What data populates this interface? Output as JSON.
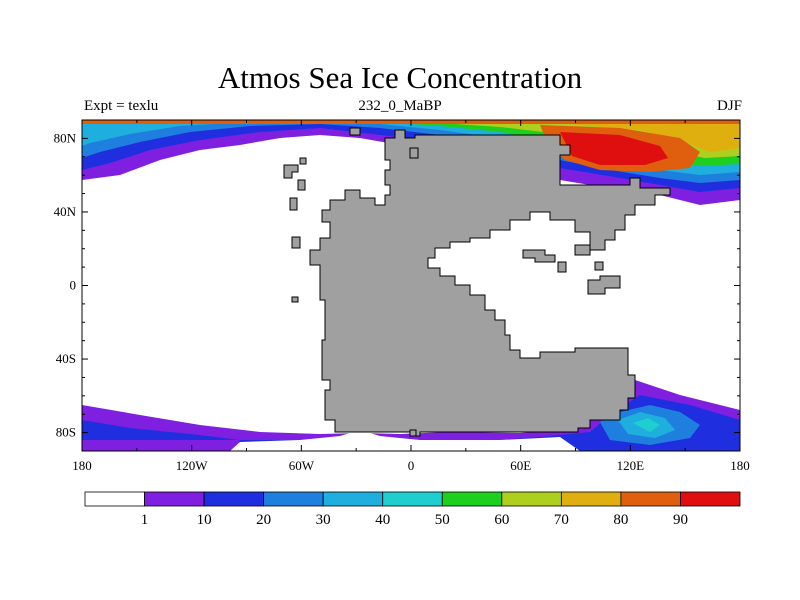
{
  "title": "Atmos Sea Ice Concentration",
  "subtitle_left": "Expt = texlu",
  "subtitle_center": "232_0_MaBP",
  "subtitle_right": "DJF",
  "colors": {
    "land": "#a0a0a0",
    "ocean_open": "#ffffff",
    "palette": [
      "#ffffff",
      "#7f1fdf",
      "#1f2fdf",
      "#1f7fdf",
      "#1fafdf",
      "#1fcfcf",
      "#1fcf1f",
      "#afcf1f",
      "#dfaf0f",
      "#df5f0f",
      "#df0f0f"
    ]
  },
  "axes": {
    "x_ticks": [
      "180",
      "120W",
      "60W",
      "0",
      "60E",
      "120E",
      "180"
    ],
    "y_ticks": [
      "80N",
      "40N",
      "0",
      "40S",
      "80S"
    ]
  },
  "colorbar": {
    "labels": [
      "1",
      "10",
      "20",
      "30",
      "40",
      "50",
      "60",
      "70",
      "80",
      "90"
    ]
  }
}
